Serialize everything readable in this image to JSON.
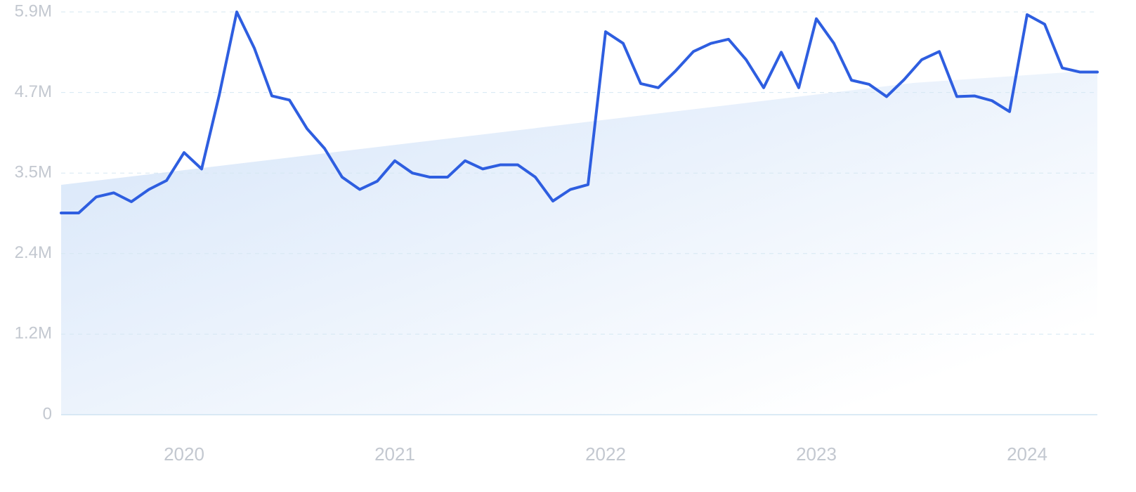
{
  "chart_data": {
    "type": "line",
    "categories": [
      null,
      null,
      null,
      null,
      null,
      null,
      null,
      "2020",
      null,
      null,
      null,
      null,
      null,
      null,
      null,
      null,
      null,
      null,
      null,
      "2021",
      null,
      null,
      null,
      null,
      null,
      null,
      null,
      null,
      null,
      null,
      null,
      "2022",
      null,
      null,
      null,
      null,
      null,
      null,
      null,
      null,
      null,
      null,
      null,
      "2023",
      null,
      null,
      null,
      null,
      null,
      null,
      null,
      null,
      null,
      null,
      null,
      "2024",
      null,
      null,
      null,
      null
    ],
    "series": [
      {
        "color": "#2e5ee0",
        "values": [
          2955000,
          2955000,
          3190000,
          3250000,
          3120000,
          3300000,
          3430000,
          3840000,
          3600000,
          4680000,
          5900000,
          5370000,
          4670000,
          4610000,
          4190000,
          3900000,
          3480000,
          3300000,
          3420000,
          3720000,
          3540000,
          3480000,
          3480000,
          3720000,
          3600000,
          3660000,
          3660000,
          3480000,
          3130000,
          3300000,
          3370000,
          5610000,
          5440000,
          4850000,
          4790000,
          5040000,
          5320000,
          5440000,
          5500000,
          5200000,
          4790000,
          5310000,
          4790000,
          5800000,
          5440000,
          4900000,
          4840000,
          4660000,
          4910000,
          5200000,
          5320000,
          4660000,
          4670000,
          4600000,
          4440000,
          5860000,
          5720000,
          5080000,
          5020000,
          5020000
        ]
      }
    ],
    "ylim": [
      0,
      5900000
    ],
    "yticks": [
      0,
      {
        "value": 1180000,
        "label": "1.2M"
      },
      {
        "value": 2360000,
        "label": "2.4M"
      },
      {
        "value": 3540000,
        "label": "3.5M"
      },
      {
        "value": 4720000,
        "label": "4.7M"
      },
      {
        "value": 5900000,
        "label": "5.9M"
      }
    ],
    "grid": true
  }
}
